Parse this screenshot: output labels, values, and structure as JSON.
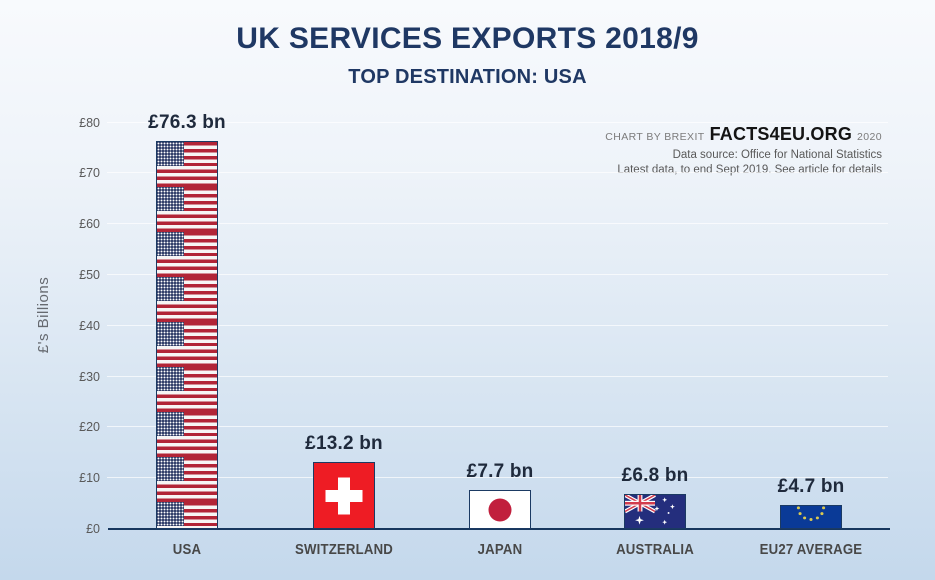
{
  "title": "UK SERVICES EXPORTS 2018/9",
  "subtitle": "TOP DESTINATION: USA",
  "attribution": {
    "prefix": "CHART BY BREXIT",
    "brand": "FACTS4EU.ORG",
    "year": "2020",
    "source": "Data source: Office for National Statistics",
    "note": "Latest data, to end Sept 2019.  See article for details"
  },
  "chart_data": {
    "type": "bar",
    "title": "UK SERVICES EXPORTS 2018/9",
    "subtitle": "TOP DESTINATION: USA",
    "categories": [
      "USA",
      "SWITZERLAND",
      "JAPAN",
      "AUSTRALIA",
      "EU27 AVERAGE"
    ],
    "values": [
      76.3,
      13.2,
      7.7,
      6.8,
      4.7
    ],
    "value_labels": [
      "£76.3 bn",
      "£13.2 bn",
      "£7.7 bn",
      "£6.8 bn",
      "£4.7 bn"
    ],
    "xlabel": "",
    "ylabel": "£'s Billions",
    "ylim": [
      0,
      80
    ],
    "ytick_labels": [
      "£0",
      "£10",
      "£20",
      "£30",
      "£40",
      "£50",
      "£60",
      "£70",
      "£80"
    ],
    "grid": true,
    "legend": false,
    "bar_fill_style": "national-flag-of-each-destination"
  },
  "colors": {
    "title_navy": "#1f3864",
    "axis_navy": "#17375e",
    "value_label": "#1f2a3c",
    "tick_gray": "#595959",
    "background_top": "#f8fafd",
    "background_bottom": "#c4d8ec",
    "usa_red": "#b22437",
    "usa_canton": "#2f3c68",
    "swiss_red": "#ee1c24",
    "japan_red": "#c11f3d",
    "australia_navy": "#242e7d",
    "eu_blue": "#0a3a97",
    "eu_star_gold": "#dcc94f"
  }
}
